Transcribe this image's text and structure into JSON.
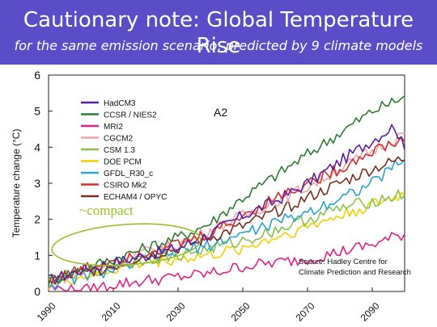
{
  "header": {
    "title": "Cautionary note: Global Temperature Rise",
    "subtitle": "for the same emission scenario, predicted by 9 climate models"
  },
  "chart_data": {
    "type": "line",
    "title": "",
    "xlabel": "",
    "ylabel": "Temperature change (°C)",
    "xlim": [
      1990,
      2100
    ],
    "ylim": [
      0,
      6
    ],
    "xticks": [
      1990,
      2010,
      2030,
      2050,
      2070,
      2090
    ],
    "yticks": [
      0,
      1,
      2,
      3,
      4,
      5,
      6
    ],
    "scenario_label": "A2",
    "annotation": "~compact",
    "source": [
      "Source: Hadley Centre for",
      "Climate Prediction and Research"
    ],
    "legend_position": "top-left",
    "series": [
      {
        "name": "HadCM3",
        "color": "#5a1f9e",
        "x": [
          1990,
          2000,
          2010,
          2020,
          2030,
          2040,
          2050,
          2060,
          2070,
          2080,
          2090,
          2097,
          2100
        ],
        "y": [
          0.3,
          0.6,
          0.8,
          1.0,
          1.2,
          1.6,
          2.1,
          2.5,
          3.0,
          3.6,
          4.2,
          4.6,
          3.9
        ]
      },
      {
        "name": "CCSR / NIES2",
        "color": "#2e7d32",
        "x": [
          1990,
          2000,
          2010,
          2020,
          2030,
          2040,
          2050,
          2060,
          2070,
          2080,
          2090,
          2100
        ],
        "y": [
          0.3,
          0.6,
          0.9,
          1.2,
          1.5,
          1.9,
          2.6,
          3.2,
          3.8,
          4.4,
          5.0,
          5.4
        ]
      },
      {
        "name": "MRI2",
        "color": "#e0218a",
        "x": [
          1990,
          2000,
          2010,
          2020,
          2030,
          2040,
          2050,
          2060,
          2070,
          2080,
          2090,
          2100
        ],
        "y": [
          0.1,
          0.0,
          0.2,
          0.3,
          0.4,
          0.5,
          0.7,
          0.8,
          0.9,
          1.1,
          1.3,
          1.6
        ]
      },
      {
        "name": "CGCM2",
        "color": "#f4a3a8",
        "x": [
          1990,
          2000,
          2010,
          2020,
          2030,
          2040,
          2050,
          2060,
          2070,
          2080,
          2090,
          2100
        ],
        "y": [
          0.3,
          0.5,
          0.8,
          1.1,
          1.3,
          1.7,
          2.1,
          2.5,
          2.9,
          3.4,
          3.9,
          4.4
        ]
      },
      {
        "name": "CSM 1.3",
        "color": "#8bc34a",
        "x": [
          1990,
          2000,
          2010,
          2020,
          2030,
          2040,
          2050,
          2060,
          2070,
          2080,
          2090,
          2100
        ],
        "y": [
          0.3,
          0.5,
          0.7,
          0.9,
          1.0,
          1.2,
          1.4,
          1.7,
          2.0,
          2.3,
          2.5,
          2.7
        ]
      },
      {
        "name": "DOE PCM",
        "color": "#f2d000",
        "x": [
          1990,
          2000,
          2010,
          2020,
          2030,
          2040,
          2050,
          2060,
          2070,
          2080,
          2090,
          2100
        ],
        "y": [
          0.2,
          0.4,
          0.6,
          0.8,
          0.9,
          1.0,
          1.2,
          1.5,
          1.8,
          2.1,
          2.4,
          2.7
        ]
      },
      {
        "name": "GFDL_R30_c",
        "color": "#29a3d1",
        "x": [
          1990,
          2000,
          2010,
          2020,
          2030,
          2040,
          2050,
          2060,
          2070,
          2080,
          2090,
          2100
        ],
        "y": [
          0.2,
          0.4,
          0.6,
          0.9,
          1.1,
          1.3,
          1.6,
          1.9,
          2.2,
          2.6,
          3.0,
          3.7
        ]
      },
      {
        "name": "CSIRO Mk2",
        "color": "#d32f2f",
        "x": [
          1990,
          2000,
          2010,
          2020,
          2030,
          2040,
          2050,
          2060,
          2070,
          2080,
          2090,
          2100
        ],
        "y": [
          0.3,
          0.6,
          0.9,
          1.1,
          1.3,
          1.6,
          2.1,
          2.6,
          3.0,
          3.4,
          3.9,
          4.2
        ]
      },
      {
        "name": "ECHAM4 / OPYC",
        "color": "#7a2e1e",
        "x": [
          1990,
          2000,
          2010,
          2020,
          2030,
          2040,
          2050,
          2060,
          2070,
          2080,
          2090,
          2100
        ],
        "y": [
          0.3,
          0.5,
          0.7,
          1.0,
          1.2,
          1.5,
          1.8,
          2.2,
          2.6,
          3.0,
          3.4,
          3.7
        ]
      }
    ]
  }
}
